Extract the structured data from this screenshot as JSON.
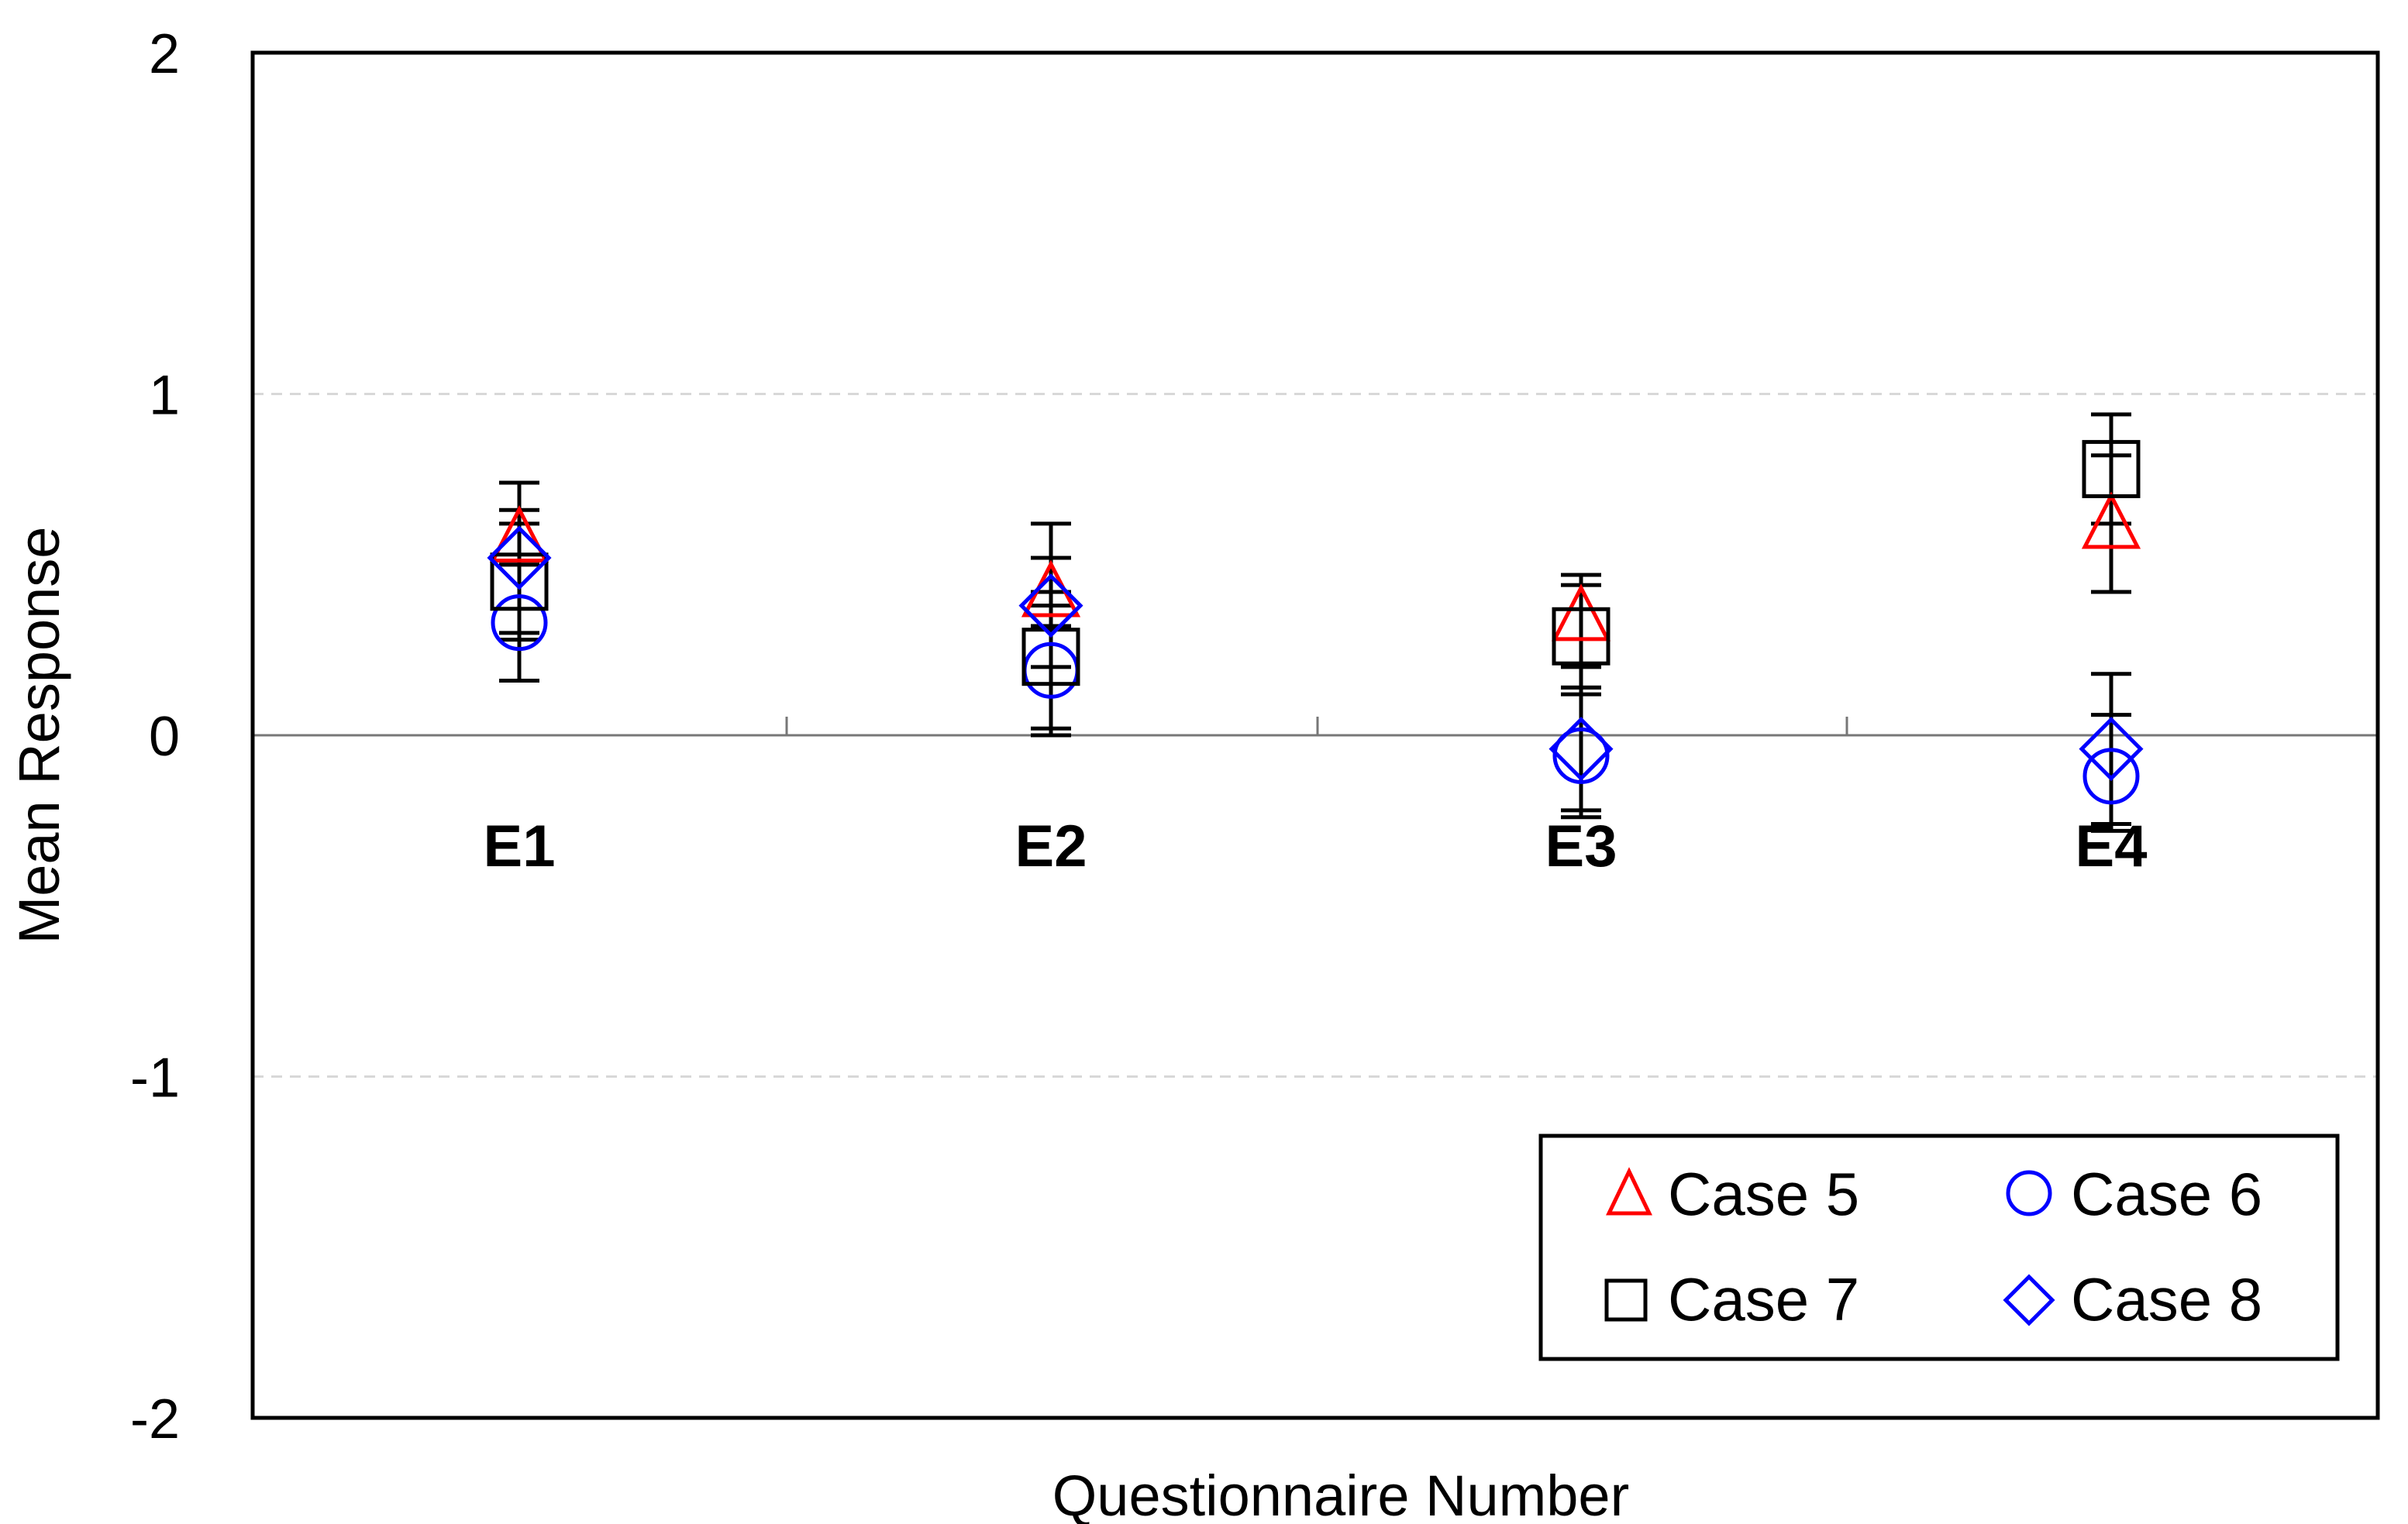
{
  "chart_data": {
    "type": "scatter",
    "title": "",
    "xlabel": "Questionnaire Number",
    "ylabel": "Mean Response",
    "ylim": [
      -2,
      2
    ],
    "yticks": [
      "2",
      "1",
      "0",
      "-1",
      "-2"
    ],
    "categories": [
      "E1",
      "E2",
      "E3",
      "E4"
    ],
    "grid": "dashed horizontal at y = 1 and y = -1, solid zero line",
    "legend_position": "bottom-right",
    "error_bars": true,
    "series": [
      {
        "name": "Case 5",
        "marker": "triangle",
        "color": "#ff0000",
        "values": [
          0.58,
          0.42,
          0.35,
          0.62
        ],
        "lower": [
          0.5,
          0.32,
          0.2,
          0.42
        ],
        "upper": [
          0.66,
          0.52,
          0.47,
          0.82
        ]
      },
      {
        "name": "Case 6",
        "marker": "circle",
        "color": "#0000ff",
        "values": [
          0.33,
          0.19,
          -0.06,
          -0.12
        ],
        "lower": [
          0.16,
          0.0,
          -0.24,
          -0.28
        ],
        "upper": [
          0.5,
          0.38,
          0.12,
          0.06
        ]
      },
      {
        "name": "Case 7",
        "marker": "square",
        "color": "#000000",
        "values": [
          0.45,
          0.23,
          0.29,
          0.78
        ],
        "lower": [
          0.28,
          0.02,
          0.14,
          0.62
        ],
        "upper": [
          0.62,
          0.42,
          0.44,
          0.94
        ]
      },
      {
        "name": "Case 8",
        "marker": "diamond",
        "color": "#0000ff",
        "values": [
          0.52,
          0.38,
          -0.04,
          -0.04
        ],
        "lower": [
          0.3,
          0.2,
          -0.22,
          -0.26
        ],
        "upper": [
          0.74,
          0.62,
          0.14,
          0.18
        ]
      }
    ]
  }
}
